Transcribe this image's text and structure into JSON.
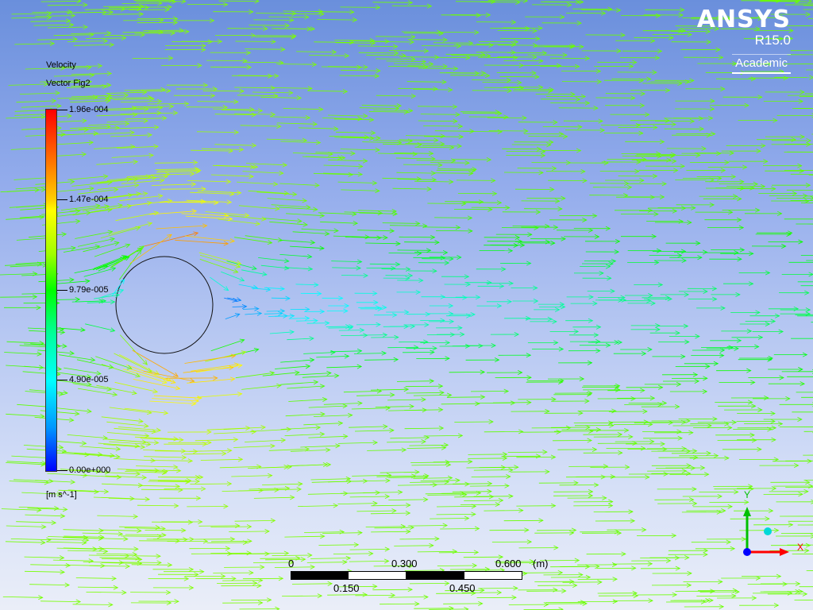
{
  "logo": {
    "brand": "ANSYS",
    "release": "R15.0",
    "edition": "Academic"
  },
  "legend": {
    "title_line1": "Velocity",
    "title_line2": "Vector Fig2",
    "ticks": [
      "1.96e-004",
      "1.47e-004",
      "9.79e-005",
      "4.90e-005",
      "0.00e+000"
    ],
    "units": "[m s^-1]",
    "colors": [
      "#ff0000",
      "#ffff00",
      "#00ff00",
      "#00ffff",
      "#0000ff"
    ]
  },
  "scale_bar": {
    "labels_top": [
      "0",
      "0.300",
      "0.600"
    ],
    "unit": "(m)",
    "labels_bottom": [
      "0.150",
      "0.450"
    ]
  },
  "axis_triad": {
    "x_label": "X",
    "y_label": "Y",
    "x_color": "#ff0000",
    "y_color": "#00c000",
    "z_color": "#0000ff"
  },
  "chart_data": {
    "type": "vector_field",
    "quantity": "Velocity",
    "range": [
      0.0,
      0.000196
    ],
    "obstacle": "circular cylinder"
  }
}
